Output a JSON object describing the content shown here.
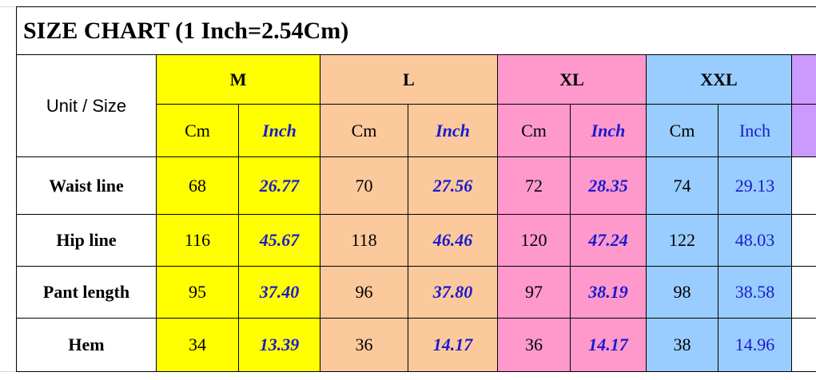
{
  "title": "SIZE CHART (1 Inch=2.54Cm)",
  "table": {
    "corner": "Unit / Size",
    "sizes": [
      {
        "name": "M",
        "color": "#ffff00",
        "units": [
          "Cm",
          "Inch"
        ]
      },
      {
        "name": "L",
        "color": "#fcc99c",
        "units": [
          "Cm",
          "Inch"
        ]
      },
      {
        "name": "XL",
        "color": "#ff99cc",
        "units": [
          "Cm",
          "Inch"
        ]
      },
      {
        "name": "XXL",
        "color": "#99ccff",
        "units": [
          "Cm",
          "Inch"
        ]
      }
    ],
    "rows": [
      {
        "label": "Waist line",
        "values": [
          "68",
          "26.77",
          "70",
          "27.56",
          "72",
          "28.35",
          "74",
          "29.13"
        ]
      },
      {
        "label": "Hip line",
        "values": [
          "116",
          "45.67",
          "118",
          "46.46",
          "120",
          "47.24",
          "122",
          "48.03"
        ]
      },
      {
        "label": "Pant length",
        "values": [
          "95",
          "37.40",
          "96",
          "37.80",
          "97",
          "38.19",
          "98",
          "38.58"
        ]
      },
      {
        "label": "Hem",
        "values": [
          "34",
          "13.39",
          "36",
          "14.17",
          "36",
          "14.17",
          "38",
          "14.96"
        ]
      }
    ]
  }
}
